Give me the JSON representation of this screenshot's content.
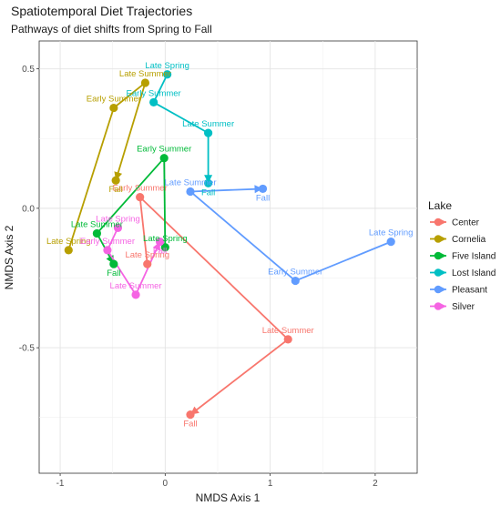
{
  "chart_data": {
    "type": "scatter",
    "title": "Spatiotemporal Diet Trajectories",
    "subtitle": "Pathways of diet shifts from Spring to Fall",
    "xlabel": "NMDS Axis 1",
    "ylabel": "NMDS Axis 2",
    "xlim": [
      -1.2,
      2.4
    ],
    "ylim": [
      -0.95,
      0.6
    ],
    "xticks": [
      -1,
      0,
      1,
      2
    ],
    "yticks": [
      -0.5,
      0.0,
      0.5
    ],
    "xtick_labels": [
      "-1",
      "0",
      "1",
      "2"
    ],
    "ytick_labels": [
      "-0.5",
      "0.0",
      "0.5"
    ],
    "grid": true,
    "legend_title": "Lake",
    "legend_position": "right",
    "series": [
      {
        "name": "Center",
        "color": "#F8766D",
        "points": [
          {
            "label": "Late Spring",
            "x": -0.17,
            "y": -0.2
          },
          {
            "label": "Early Summer",
            "x": -0.24,
            "y": 0.04
          },
          {
            "label": "Late Summer",
            "x": 1.17,
            "y": -0.47
          },
          {
            "label": "Fall",
            "x": 0.24,
            "y": -0.74
          }
        ]
      },
      {
        "name": "Cornelia",
        "color": "#B79F00",
        "points": [
          {
            "label": "Late Spring",
            "x": -0.92,
            "y": -0.15
          },
          {
            "label": "Early Summer",
            "x": -0.49,
            "y": 0.36
          },
          {
            "label": "Late Summer",
            "x": -0.19,
            "y": 0.45
          },
          {
            "label": "Fall",
            "x": -0.47,
            "y": 0.1
          }
        ]
      },
      {
        "name": "Five Island",
        "color": "#00BA38",
        "points": [
          {
            "label": "Late Spring",
            "x": 0.0,
            "y": -0.14
          },
          {
            "label": "Early Summer",
            "x": -0.01,
            "y": 0.18
          },
          {
            "label": "Late Summer",
            "x": -0.65,
            "y": -0.09
          },
          {
            "label": "Fall",
            "x": -0.49,
            "y": -0.2
          }
        ]
      },
      {
        "name": "Lost Island",
        "color": "#00BFC4",
        "points": [
          {
            "label": "Late Spring",
            "x": 0.02,
            "y": 0.48
          },
          {
            "label": "Early Summer",
            "x": -0.11,
            "y": 0.38
          },
          {
            "label": "Late Summer",
            "x": 0.41,
            "y": 0.27
          },
          {
            "label": "Fall",
            "x": 0.41,
            "y": 0.09
          }
        ]
      },
      {
        "name": "Pleasant",
        "color": "#619CFF",
        "points": [
          {
            "label": "Late Spring",
            "x": 2.15,
            "y": -0.12
          },
          {
            "label": "Early Summer",
            "x": 1.24,
            "y": -0.26
          },
          {
            "label": "Late Summer",
            "x": 0.24,
            "y": 0.06
          },
          {
            "label": "Fall",
            "x": 0.93,
            "y": 0.07
          }
        ]
      },
      {
        "name": "Silver",
        "color": "#F564E3",
        "points": [
          {
            "label": "Late Spring",
            "x": -0.45,
            "y": -0.07
          },
          {
            "label": "Early Summer",
            "x": -0.55,
            "y": -0.15
          },
          {
            "label": "Late Summer",
            "x": -0.28,
            "y": -0.31
          },
          {
            "label": "Fall",
            "x": -0.05,
            "y": -0.12
          }
        ]
      }
    ]
  }
}
